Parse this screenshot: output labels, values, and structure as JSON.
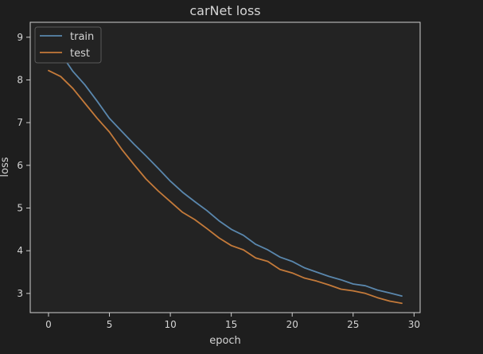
{
  "chart_data": {
    "type": "line",
    "title": "carNet loss",
    "xlabel": "epoch",
    "ylabel": "loss",
    "xlim": [
      -1.5,
      30.5
    ],
    "ylim": [
      2.55,
      9.35
    ],
    "xticks": [
      0,
      5,
      10,
      15,
      20,
      25,
      30
    ],
    "yticks": [
      3,
      4,
      5,
      6,
      7,
      8,
      9
    ],
    "grid": false,
    "legend_position": "top-left",
    "x": [
      0,
      1,
      2,
      3,
      4,
      5,
      6,
      7,
      8,
      9,
      10,
      11,
      12,
      13,
      14,
      15,
      16,
      17,
      18,
      19,
      20,
      21,
      22,
      23,
      24,
      25,
      26,
      27,
      28,
      29
    ],
    "series": [
      {
        "name": "train",
        "color": "#5a87ad",
        "values": [
          9.05,
          8.62,
          8.2,
          7.88,
          7.5,
          7.1,
          6.8,
          6.5,
          6.22,
          5.93,
          5.63,
          5.37,
          5.15,
          4.94,
          4.7,
          4.5,
          4.36,
          4.15,
          4.02,
          3.85,
          3.75,
          3.6,
          3.5,
          3.4,
          3.32,
          3.22,
          3.18,
          3.08,
          3.01,
          2.94
        ]
      },
      {
        "name": "test",
        "color": "#c47a3a",
        "values": [
          8.22,
          8.08,
          7.8,
          7.45,
          7.1,
          6.78,
          6.38,
          6.02,
          5.68,
          5.4,
          5.15,
          4.9,
          4.73,
          4.52,
          4.3,
          4.12,
          4.02,
          3.83,
          3.75,
          3.56,
          3.48,
          3.36,
          3.29,
          3.2,
          3.1,
          3.06,
          3.0,
          2.9,
          2.82,
          2.77
        ]
      }
    ]
  }
}
